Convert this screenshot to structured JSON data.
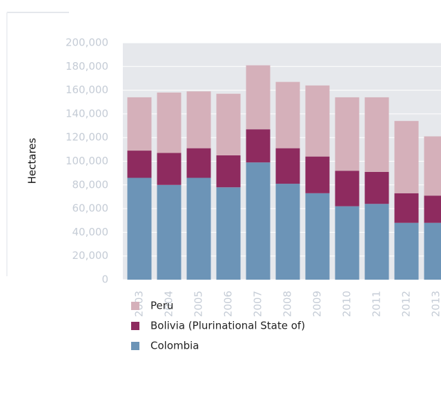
{
  "chart_data": {
    "type": "stacked-bar",
    "y_label": "Hectares",
    "categories": [
      "2003",
      "2004",
      "2005",
      "2006",
      "2007",
      "2008",
      "2009",
      "2010",
      "2011",
      "2012",
      "2013"
    ],
    "series": [
      {
        "name": "Colombia",
        "color": "#6c94b7",
        "values": [
          86000,
          80000,
          86000,
          78000,
          99000,
          81000,
          73000,
          62000,
          64000,
          48000,
          48000
        ]
      },
      {
        "name": "Bolivia (Plurinational State of)",
        "color": "#8e2b5f",
        "values": [
          23000,
          27000,
          25000,
          27000,
          28000,
          30000,
          31000,
          30000,
          27000,
          25000,
          23000
        ]
      },
      {
        "name": "Peru",
        "color": "#d5b0ba",
        "values": [
          45000,
          51000,
          48000,
          52000,
          54000,
          56000,
          60000,
          62000,
          63000,
          61000,
          50000
        ]
      }
    ],
    "ylim": [
      0,
      200000
    ],
    "yticks": [
      0,
      {
        "value": 20000,
        "label": "20,000"
      },
      {
        "value": 40000,
        "label": "40,000"
      },
      {
        "value": 60000,
        "label": "60,000"
      },
      {
        "value": 80000,
        "label": "80,000"
      },
      {
        "value": 100000,
        "label": "100,000"
      },
      {
        "value": 120000,
        "label": "120,000"
      },
      {
        "value": 140000,
        "label": "140,000"
      },
      {
        "value": 160000,
        "label": "160,000"
      },
      {
        "value": 180000,
        "label": "180,000"
      },
      {
        "value": 200000,
        "label": "200,000"
      }
    ],
    "grid": true
  }
}
